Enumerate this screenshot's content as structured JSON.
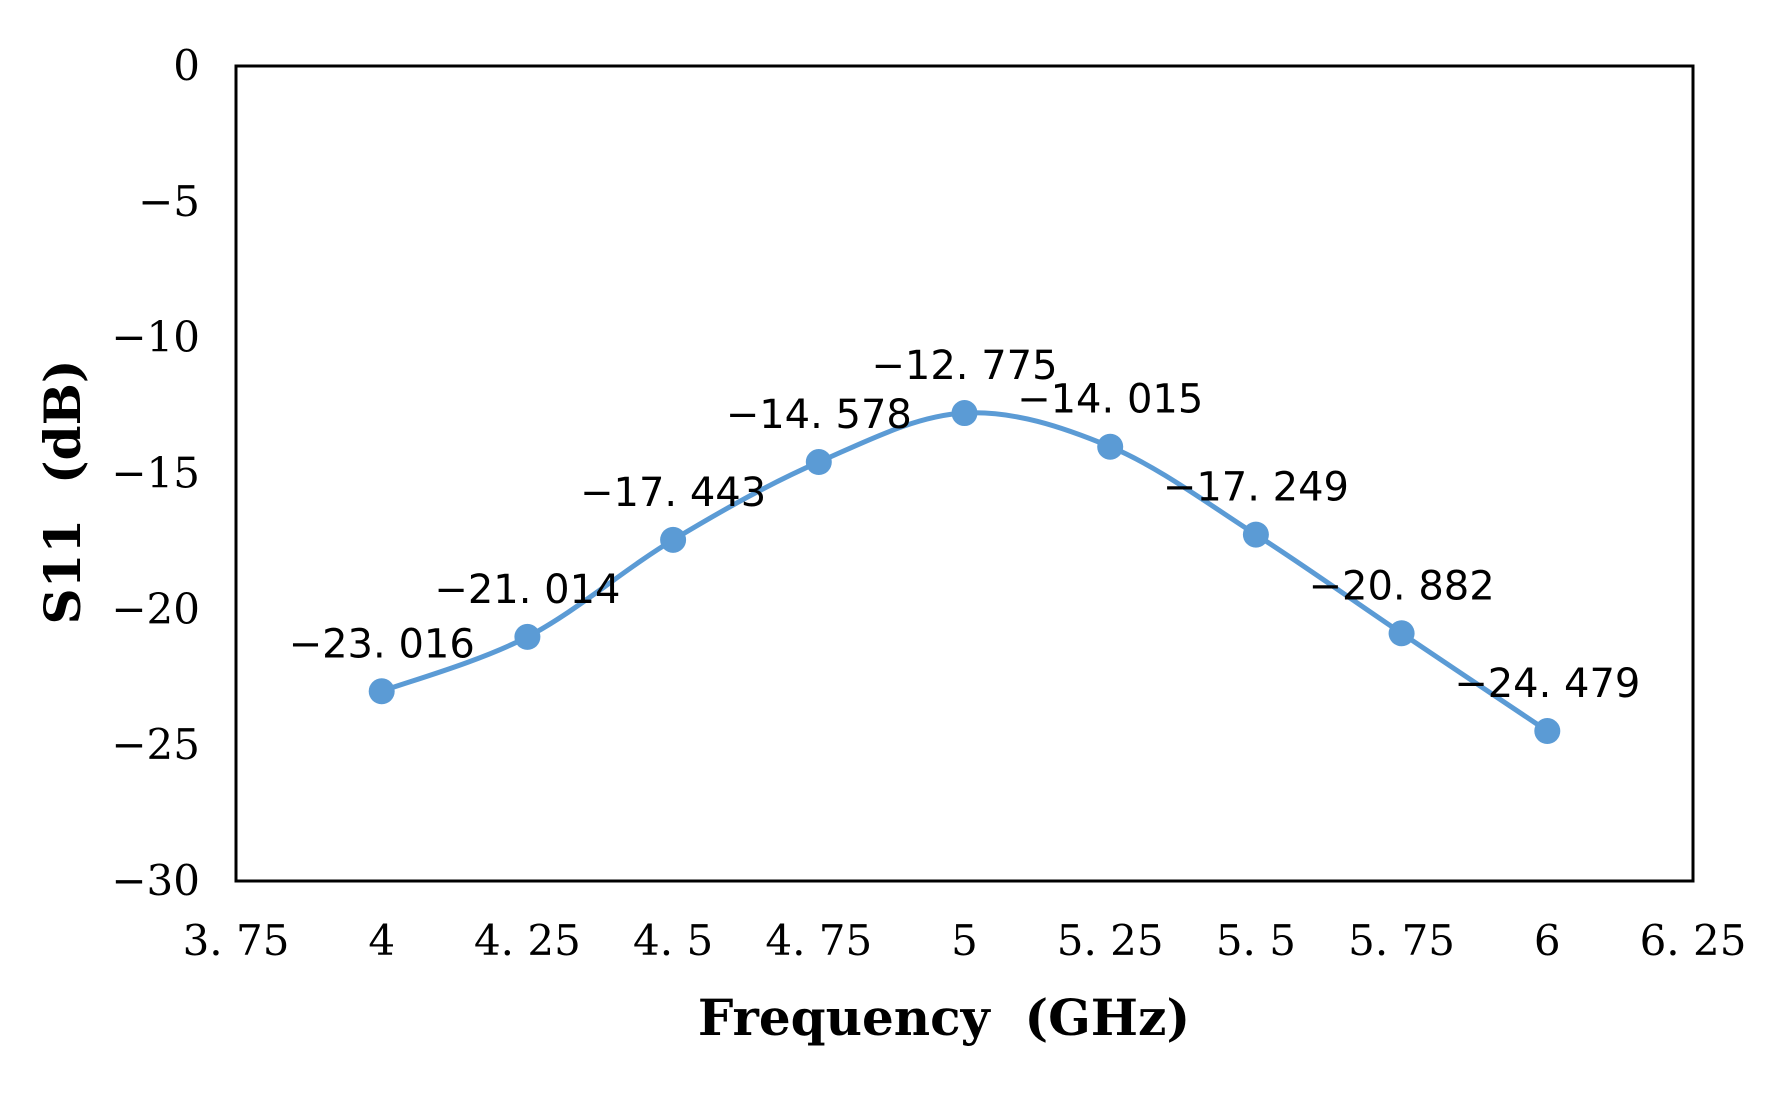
{
  "chart_data": {
    "type": "line",
    "title": "",
    "xlabel": "Frequency  (GHz)",
    "ylabel": "S11  (dB)",
    "xlim": [
      3.75,
      6.25
    ],
    "ylim": [
      -30,
      0
    ],
    "x_ticks": [
      3.75,
      4,
      4.25,
      4.5,
      4.75,
      5,
      5.25,
      5.5,
      5.75,
      6,
      6.25
    ],
    "x_tick_labels": [
      "3. 75",
      "4",
      "4. 25",
      "4. 5",
      "4. 75",
      "5",
      "5. 25",
      "5. 5",
      "5. 75",
      "6",
      "6. 25"
    ],
    "y_ticks": [
      0,
      -5,
      -10,
      -15,
      -20,
      -25,
      -30
    ],
    "y_tick_labels": [
      "0",
      "−5",
      "−10",
      "−15",
      "−20",
      "−25",
      "−30"
    ],
    "grid": false,
    "legend": "none",
    "series": [
      {
        "name": "S11",
        "color": "#5B9BD5",
        "smooth": true,
        "markers": true,
        "x": [
          4,
          4.25,
          4.5,
          4.75,
          5,
          5.25,
          5.5,
          5.75,
          6
        ],
        "values": [
          -23.016,
          -21.014,
          -17.443,
          -14.578,
          -12.775,
          -14.015,
          -17.249,
          -20.882,
          -24.479
        ],
        "data_labels": [
          "−23. 016",
          "−21. 014",
          "−17. 443",
          "−14. 578",
          "−12. 775",
          "−14. 015",
          "−17. 249",
          "−20. 882",
          "−24. 479"
        ]
      }
    ]
  }
}
